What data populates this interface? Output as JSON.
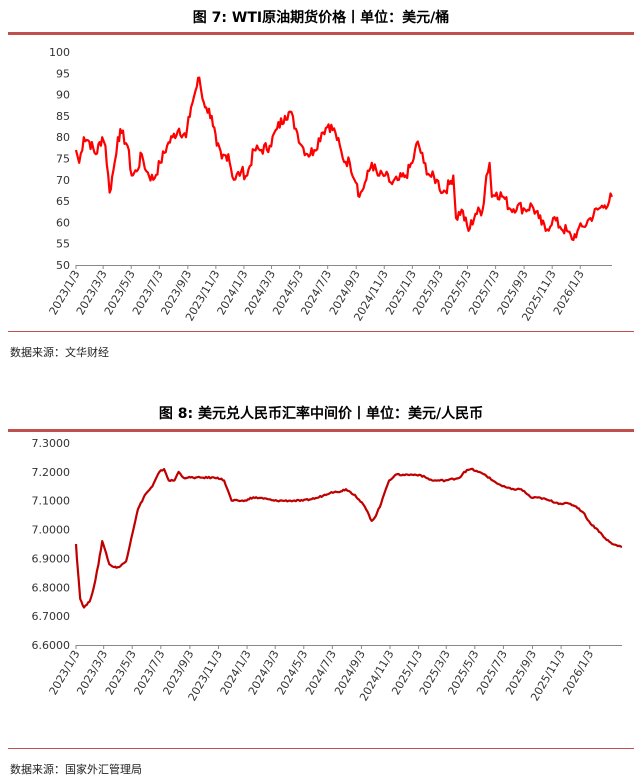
{
  "charts": {
    "wti": {
      "title": "图 7: WTI原油期货价格丨单位：美元/桶",
      "source": "数据来源：文华财经"
    },
    "fx": {
      "title": "图 8: 美元兑人民币汇率中间价丨单位：美元/人民币",
      "source": "数据来源：国家外汇管理局"
    }
  },
  "chart_data": [
    {
      "type": "line",
      "title": "图 7: WTI原油期货价格丨单位：美元/桶",
      "ylim": [
        50,
        100
      ],
      "y_ticks": [
        "50",
        "55",
        "60",
        "65",
        "70",
        "75",
        "80",
        "85",
        "90",
        "95",
        "100"
      ],
      "grid": false,
      "x_range": [
        "2023-01-03",
        "2026-03-13"
      ],
      "x_ticks": [
        "2023/1/3",
        "2023/3/3",
        "2023/5/3",
        "2023/7/3",
        "2023/9/3",
        "2023/11/3",
        "2024/1/3",
        "2024/3/3",
        "2024/5/3",
        "2024/7/3",
        "2024/9/3",
        "2024/11/3",
        "2025/1/3",
        "2025/3/3",
        "2025/5/3",
        "2025/7/3",
        "2025/9/3",
        "2025/11/3",
        "2026/1/3"
      ],
      "color": "#ff0000",
      "series": [
        {
          "x": [
            "2023-01-03",
            "2023-01-10",
            "2023-01-20",
            "2023-02-01",
            "2023-02-15",
            "2023-03-01",
            "2023-03-08",
            "2023-03-17",
            "2023-03-28",
            "2023-04-04",
            "2023-04-12",
            "2023-04-25",
            "2023-05-04",
            "2023-05-15",
            "2023-05-26",
            "2023-06-05",
            "2023-06-20",
            "2023-07-05",
            "2023-07-20",
            "2023-08-01",
            "2023-08-15",
            "2023-08-30",
            "2023-09-10",
            "2023-09-20",
            "2023-09-28",
            "2023-10-05",
            "2023-10-13",
            "2023-10-25",
            "2023-11-05",
            "2023-11-16",
            "2023-11-30",
            "2023-12-12",
            "2023-12-28",
            "2024-01-10",
            "2024-01-25",
            "2024-02-10",
            "2024-02-28",
            "2024-03-15",
            "2024-04-01",
            "2024-04-12",
            "2024-04-25",
            "2024-05-08",
            "2024-05-20",
            "2024-06-04",
            "2024-06-20",
            "2024-07-05",
            "2024-07-20",
            "2024-08-05",
            "2024-08-20",
            "2024-09-05",
            "2024-09-10",
            "2024-09-25",
            "2024-10-07",
            "2024-10-20",
            "2024-11-05",
            "2024-11-20",
            "2024-12-05",
            "2024-12-20",
            "2025-01-03",
            "2025-01-15",
            "2025-01-28",
            "2025-02-10",
            "2025-02-25",
            "2025-03-10",
            "2025-03-25",
            "2025-04-02",
            "2025-04-08",
            "2025-04-20",
            "2025-05-05",
            "2025-05-20",
            "2025-06-05",
            "2025-06-13",
            "2025-06-20",
            "2025-06-25",
            "2025-07-05",
            "2025-07-20",
            "2025-08-05",
            "2025-08-20",
            "2025-09-05",
            "2025-09-20",
            "2025-10-05",
            "2025-10-20",
            "2025-11-05",
            "2025-11-20",
            "2025-12-05",
            "2025-12-16",
            "2025-12-28",
            "2026-01-10",
            "2026-01-25",
            "2026-02-10",
            "2026-02-25",
            "2026-03-13"
          ],
          "values": [
            77,
            74,
            80,
            79,
            76,
            80,
            78,
            67,
            74,
            80,
            81,
            78,
            71,
            72,
            76,
            72,
            70,
            74,
            78,
            80,
            82,
            80,
            87,
            91,
            94,
            89,
            87,
            85,
            78,
            75,
            76,
            70,
            72,
            71,
            77,
            77,
            78,
            82,
            85,
            86,
            82,
            78,
            76,
            77,
            81,
            83,
            81,
            75,
            74,
            69,
            66,
            70,
            74,
            71,
            71,
            69,
            70,
            71,
            74,
            79,
            74,
            71,
            70,
            67,
            69,
            71,
            61,
            63,
            58,
            62,
            63,
            71,
            74,
            66,
            67,
            66,
            63,
            64,
            63,
            64,
            61,
            58,
            61,
            59,
            58,
            56,
            58,
            59,
            61,
            63,
            64,
            66
          ]
        }
      ]
    },
    {
      "type": "line",
      "title": "图 8: 美元兑人民币汇率中间价丨单位：美元/人民币",
      "ylim": [
        6.6,
        7.3
      ],
      "y_ticks": [
        "6.6000",
        "6.7000",
        "6.8000",
        "6.9000",
        "7.0000",
        "7.1000",
        "7.2000",
        "7.3000"
      ],
      "grid": false,
      "x_range": [
        "2023-01-03",
        "2026-03-13"
      ],
      "x_ticks": [
        "2023/1/3",
        "2023/3/3",
        "2023/5/3",
        "2023/7/3",
        "2023/9/3",
        "2023/11/3",
        "2024/1/3",
        "2024/3/3",
        "2024/5/3",
        "2024/7/3",
        "2024/9/3",
        "2024/11/3",
        "2025/1/3",
        "2025/3/3",
        "2025/5/3",
        "2025/7/3",
        "2025/9/3",
        "2025/11/3",
        "2026/1/3"
      ],
      "color": "#c00000",
      "series": [
        {
          "x": [
            "2023-01-03",
            "2023-01-05",
            "2023-01-12",
            "2023-01-20",
            "2023-02-01",
            "2023-02-10",
            "2023-02-20",
            "2023-02-28",
            "2023-03-08",
            "2023-03-15",
            "2023-03-25",
            "2023-04-05",
            "2023-04-20",
            "2023-05-01",
            "2023-05-15",
            "2023-05-30",
            "2023-06-15",
            "2023-06-30",
            "2023-07-10",
            "2023-07-20",
            "2023-08-01",
            "2023-08-10",
            "2023-08-20",
            "2023-08-30",
            "2023-09-10",
            "2023-10-01",
            "2023-11-01",
            "2023-11-15",
            "2023-12-01",
            "2023-12-15",
            "2024-01-02",
            "2024-01-10",
            "2024-02-01",
            "2024-03-01",
            "2024-04-01",
            "2024-05-01",
            "2024-06-01",
            "2024-07-01",
            "2024-07-15",
            "2024-08-01",
            "2024-08-20",
            "2024-09-10",
            "2024-09-25",
            "2024-10-01",
            "2024-10-15",
            "2024-10-25",
            "2024-11-01",
            "2024-11-15",
            "2024-12-01",
            "2024-12-20",
            "2025-01-05",
            "2025-02-01",
            "2025-03-01",
            "2025-04-01",
            "2025-04-10",
            "2025-04-25",
            "2025-05-10",
            "2025-05-25",
            "2025-06-10",
            "2025-07-01",
            "2025-07-20",
            "2025-08-10",
            "2025-09-01",
            "2025-09-20",
            "2025-10-10",
            "2025-11-01",
            "2025-11-20",
            "2025-12-05",
            "2025-12-20",
            "2026-01-05",
            "2026-01-20",
            "2026-02-05",
            "2026-02-20",
            "2026-03-13"
          ],
          "values": [
            6.95,
            6.9,
            6.76,
            6.73,
            6.75,
            6.8,
            6.88,
            6.96,
            6.92,
            6.88,
            6.87,
            6.87,
            6.89,
            6.97,
            7.07,
            7.12,
            7.15,
            7.2,
            7.21,
            7.17,
            7.17,
            7.2,
            7.18,
            7.18,
            7.18,
            7.18,
            7.18,
            7.17,
            7.1,
            7.1,
            7.1,
            7.11,
            7.11,
            7.1,
            7.1,
            7.1,
            7.11,
            7.13,
            7.13,
            7.14,
            7.12,
            7.08,
            7.03,
            7.04,
            7.09,
            7.14,
            7.17,
            7.19,
            7.19,
            7.19,
            7.19,
            7.17,
            7.17,
            7.18,
            7.2,
            7.21,
            7.2,
            7.19,
            7.17,
            7.15,
            7.14,
            7.14,
            7.11,
            7.11,
            7.1,
            7.09,
            7.09,
            7.08,
            7.06,
            7.02,
            7.0,
            6.97,
            6.95,
            6.94
          ]
        }
      ]
    }
  ]
}
